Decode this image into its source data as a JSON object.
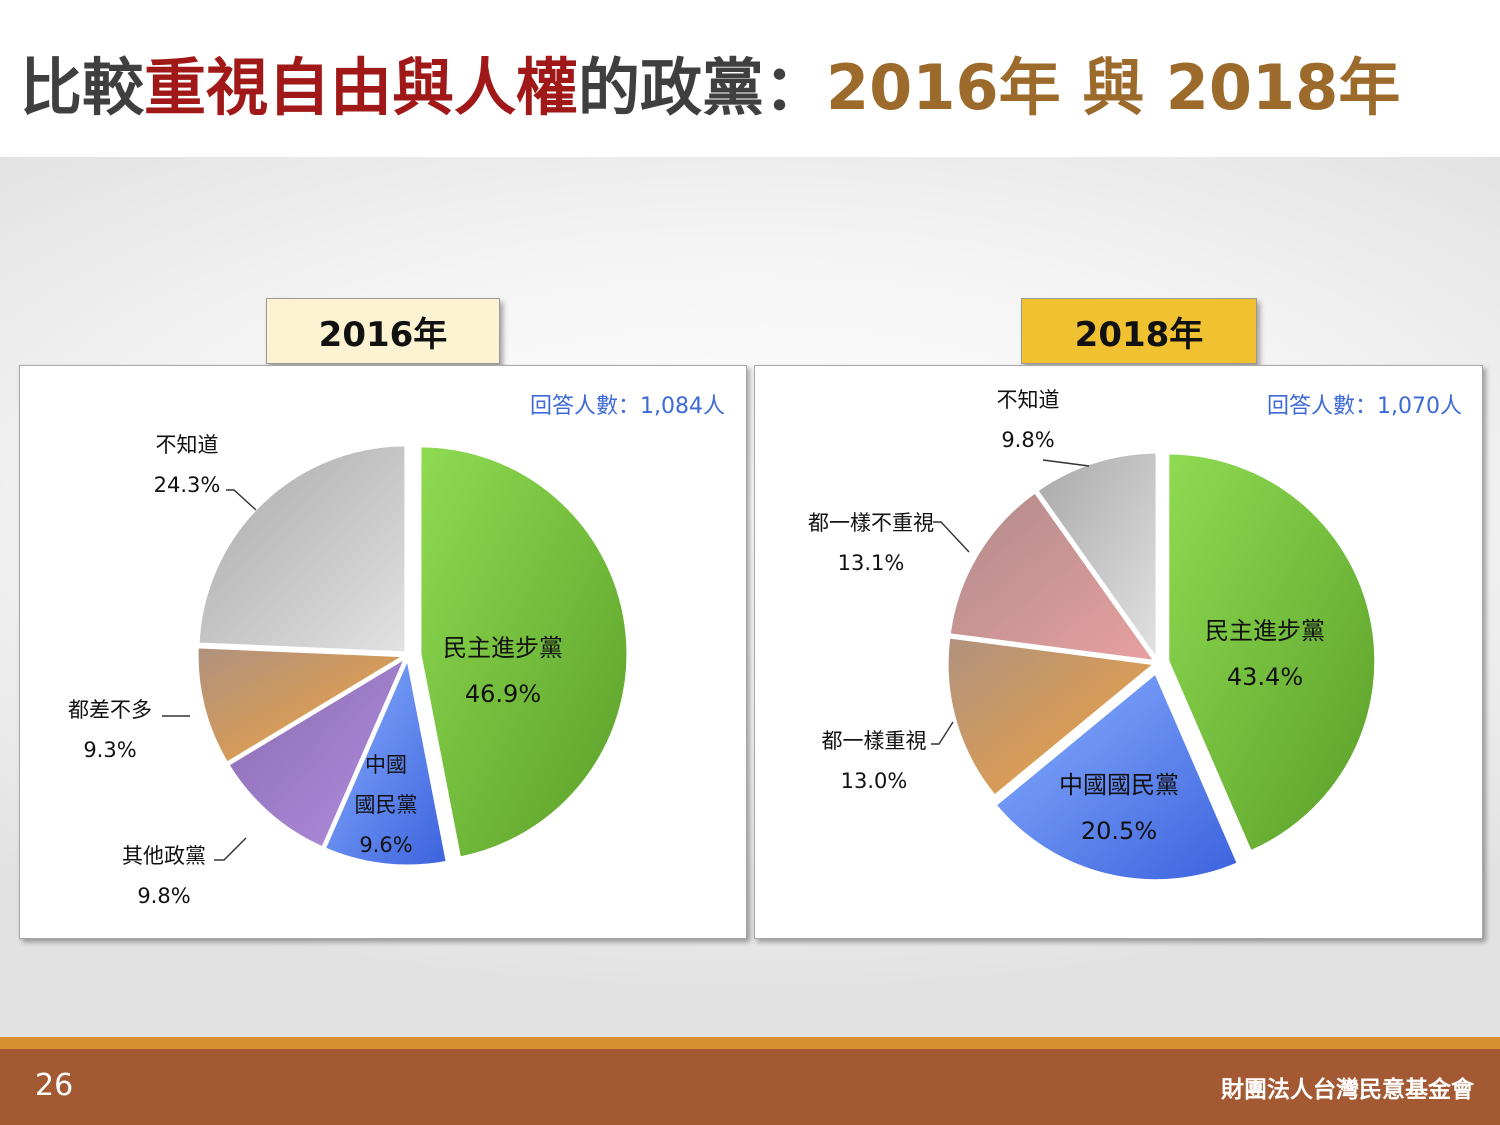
{
  "title": {
    "part1": "比較",
    "part2": "重視自由與人權",
    "part3": "的政黨：",
    "part4": "2016年 與 2018年"
  },
  "colors": {
    "title_dark": "#3f3f3f",
    "title_red": "#a01818",
    "title_gold": "#9c6b2c",
    "respondent_text": "#3c6ad6",
    "footer": "#a35a32",
    "footer_accent": "#d89030"
  },
  "chart_data": [
    {
      "type": "pie",
      "title": "2016年",
      "respondents": "回答人數：1,084人",
      "slices": [
        {
          "label": "民主進步黨",
          "value": 46.9,
          "value_label": "46.9%",
          "colors": [
            "#5a9e28",
            "#8edc52"
          ]
        },
        {
          "label": "中國國民黨",
          "value": 9.6,
          "value_label": "9.6%",
          "colors": [
            "#3b62dd",
            "#8ab0ff"
          ]
        },
        {
          "label": "其他政黨",
          "value": 9.8,
          "value_label": "9.8%",
          "colors": [
            "#b28ee0",
            "#8a6bb0"
          ]
        },
        {
          "label": "都差不多",
          "value": 9.3,
          "value_label": "9.3%",
          "colors": [
            "#f2a23a",
            "#b09280"
          ]
        },
        {
          "label": "不知道",
          "value": 24.3,
          "value_label": "24.3%",
          "colors": [
            "#e2e2e2",
            "#a8a8a8"
          ]
        }
      ],
      "exploded": [
        "民主進步黨"
      ]
    },
    {
      "type": "pie",
      "title": "2018年",
      "respondents": "回答人數：1,070人",
      "slices": [
        {
          "label": "民主進步黨",
          "value": 43.4,
          "value_label": "43.4%",
          "colors": [
            "#5a9e28",
            "#8edc52"
          ]
        },
        {
          "label": "中國國民黨",
          "value": 20.5,
          "value_label": "20.5%",
          "colors": [
            "#3b62dd",
            "#8ab0ff"
          ]
        },
        {
          "label": "都一樣重視",
          "value": 13.0,
          "value_label": "13.0%",
          "colors": [
            "#f2a23a",
            "#b09280"
          ]
        },
        {
          "label": "都一樣不重視",
          "value": 13.1,
          "value_label": "13.1%",
          "colors": [
            "#e8a0a0",
            "#b08a8a"
          ]
        },
        {
          "label": "不知道",
          "value": 9.8,
          "value_label": "9.8%",
          "colors": [
            "#e2e2e2",
            "#a8a8a8"
          ]
        }
      ],
      "exploded": [
        "民主進步黨",
        "中國國民黨"
      ]
    }
  ],
  "labels_2016": {
    "dpp": [
      "民主進步黨",
      "46.9%"
    ],
    "kmt": [
      "中國",
      "國民黨",
      "9.6%"
    ],
    "other": [
      "其他政黨",
      "9.8%"
    ],
    "same": [
      "都差不多",
      "9.3%"
    ],
    "dk": [
      "不知道",
      "24.3%"
    ]
  },
  "labels_2018": {
    "dpp": [
      "民主進步黨",
      "43.4%"
    ],
    "kmt": [
      "中國國民黨",
      "20.5%"
    ],
    "both_value": [
      "都一樣重視",
      "13.0%"
    ],
    "neither": [
      "都一樣不重視",
      "13.1%"
    ],
    "dk": [
      "不知道",
      "9.8%"
    ]
  },
  "footer": {
    "page_number": "26",
    "organization": "財團法人台灣民意基金會"
  }
}
